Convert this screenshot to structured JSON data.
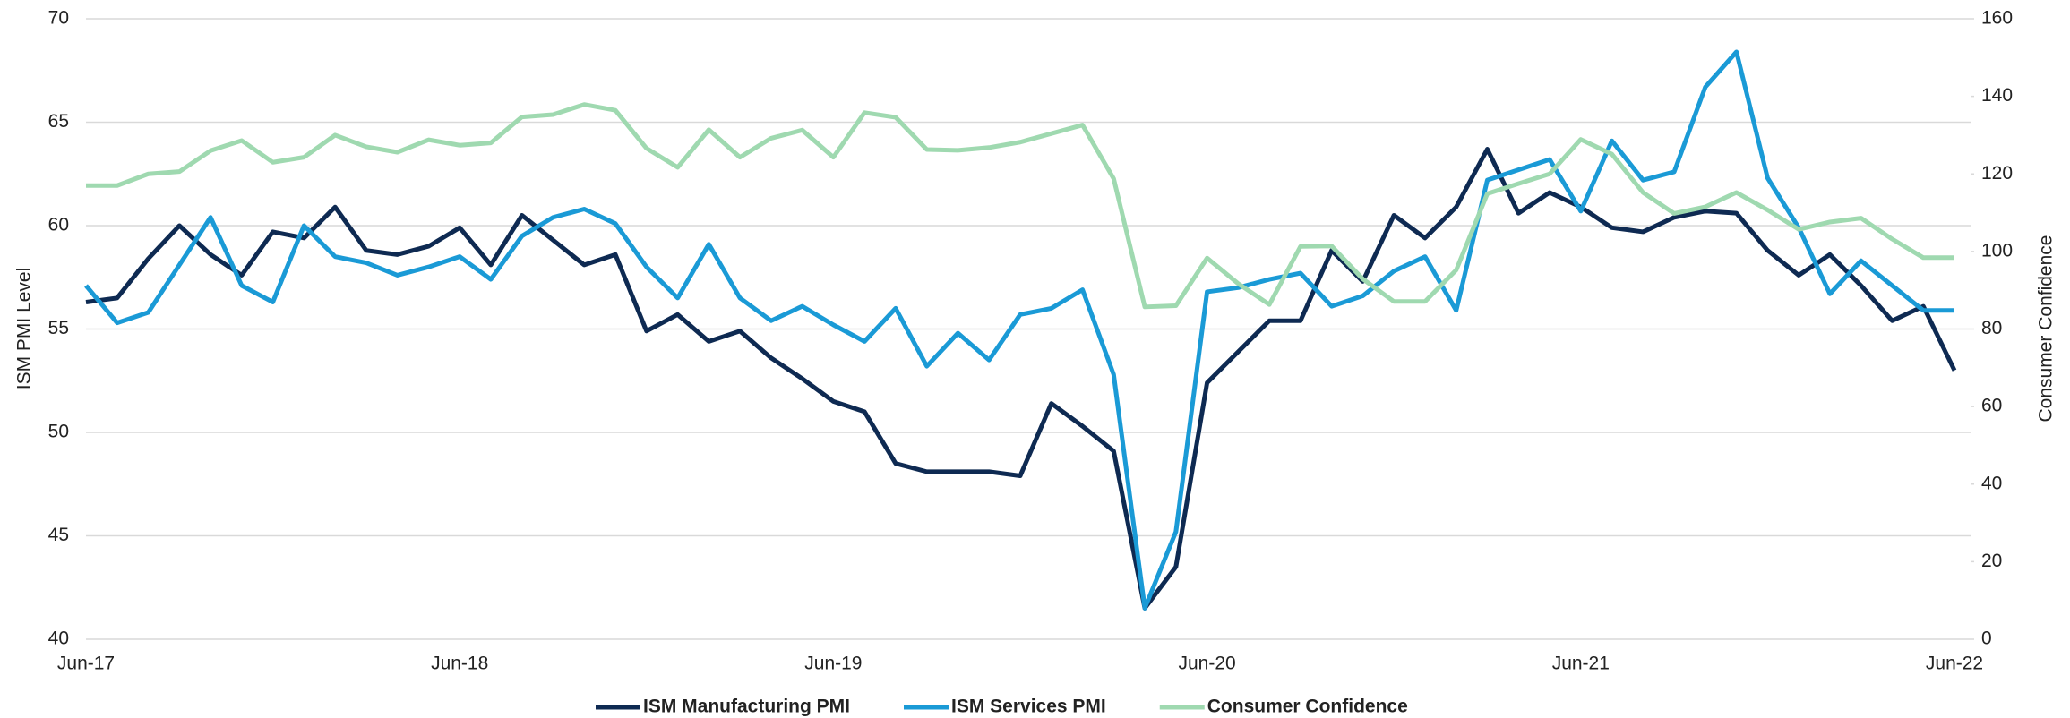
{
  "chart_data": {
    "type": "line",
    "y_label": "ISM PMI Level",
    "y2_label": "Consumer Confidence",
    "categories": [
      "Jun-17",
      null,
      null,
      null,
      null,
      null,
      null,
      null,
      null,
      null,
      null,
      null,
      "Jun-18",
      null,
      null,
      null,
      null,
      null,
      null,
      null,
      null,
      null,
      null,
      null,
      "Jun-19",
      null,
      null,
      null,
      null,
      null,
      null,
      null,
      null,
      null,
      null,
      null,
      "Jun-20",
      null,
      null,
      null,
      null,
      null,
      null,
      null,
      null,
      null,
      null,
      null,
      "Jun-21",
      null,
      null,
      null,
      null,
      null,
      null,
      null,
      null,
      null,
      null,
      null,
      "Jun-22"
    ],
    "series": [
      {
        "name": "ISM Manufacturing PMI",
        "color": "#0e2a52",
        "values": [
          56.3,
          56.5,
          58.4,
          60.0,
          58.6,
          57.6,
          59.7,
          59.4,
          60.9,
          58.8,
          58.6,
          59.0,
          59.9,
          58.1,
          60.5,
          59.3,
          58.1,
          58.6,
          54.9,
          55.7,
          54.4,
          54.9,
          53.6,
          52.6,
          51.5,
          51.0,
          48.5,
          48.1,
          48.1,
          48.1,
          47.9,
          51.4,
          50.3,
          49.1,
          41.5,
          43.5,
          52.4,
          53.9,
          55.4,
          55.4,
          58.8,
          57.3,
          60.5,
          59.4,
          60.9,
          63.7,
          60.6,
          61.6,
          60.9,
          59.9,
          59.7,
          60.4,
          60.7,
          60.6,
          58.8,
          57.6,
          58.6,
          57.1,
          55.4,
          56.1,
          53.0
        ]
      },
      {
        "name": "ISM Services PMI",
        "color": "#1a9ad6",
        "values": [
          57.1,
          55.3,
          55.8,
          58.1,
          60.4,
          57.1,
          56.3,
          60.0,
          58.5,
          58.2,
          57.6,
          58.0,
          58.5,
          57.4,
          59.5,
          60.4,
          60.8,
          60.1,
          58.0,
          56.5,
          59.1,
          56.5,
          55.4,
          56.1,
          55.2,
          54.4,
          56.0,
          53.2,
          54.8,
          53.5,
          55.7,
          56.0,
          56.9,
          52.8,
          41.5,
          45.2,
          56.8,
          57.0,
          57.4,
          57.7,
          56.1,
          56.6,
          57.8,
          58.5,
          55.9,
          62.2,
          62.7,
          63.2,
          60.7,
          64.1,
          62.2,
          62.6,
          66.7,
          68.4,
          62.3,
          59.9,
          56.7,
          58.3,
          57.1,
          55.9,
          55.9
        ]
      },
      {
        "name": "Consumer Confidence",
        "color": "#9fd9b0",
        "axis": "y2",
        "values": [
          117,
          117,
          120,
          120.6,
          126,
          128.6,
          123,
          124.3,
          130,
          127,
          125.6,
          128.8,
          127.4,
          128,
          134.7,
          135.3,
          137.9,
          136.4,
          126.6,
          121.7,
          131.4,
          124.3,
          129.2,
          131.3,
          124.3,
          135.8,
          134.6,
          126.3,
          126.1,
          126.8,
          128.2,
          130.4,
          132.6,
          118.8,
          85.7,
          86.0,
          98.3,
          91.7,
          86.3,
          101.3,
          101.4,
          92.9,
          87.1,
          87.1,
          95.2,
          114.9,
          117.5,
          120,
          128.9,
          125.1,
          115.2,
          109.8,
          111.5,
          115.2,
          110.7,
          105.7,
          107.6,
          108.6,
          103.2,
          98.4,
          98.4
        ]
      }
    ],
    "ylim": [
      40,
      70
    ],
    "yticks": [
      40,
      45,
      50,
      55,
      60,
      65,
      70
    ],
    "y2lim": [
      0,
      160
    ],
    "y2ticks": [
      0,
      20,
      40,
      60,
      80,
      100,
      120,
      140,
      160
    ],
    "grid": true,
    "legend": "bottom"
  }
}
